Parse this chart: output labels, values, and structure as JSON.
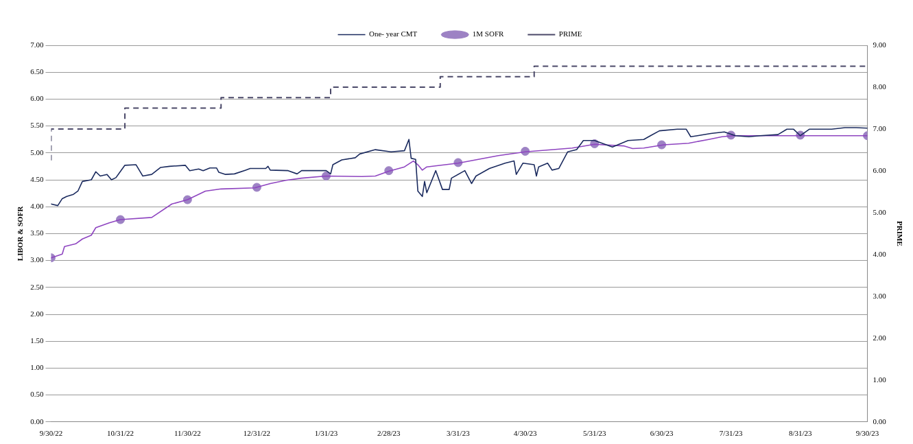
{
  "chart_data": {
    "type": "line",
    "ylabel": "LIBOR & SOFR",
    "y2label": "PRIME",
    "legend": "top",
    "grid": "y",
    "xlim": [
      "2022-09-30",
      "2023-09-30"
    ],
    "xticks": [
      {
        "value": "2022-09-30",
        "label": "9/30/22"
      },
      {
        "value": "2022-10-31",
        "label": "10/31/22"
      },
      {
        "value": "2022-11-30",
        "label": "11/30/22"
      },
      {
        "value": "2022-12-31",
        "label": "12/31/22"
      },
      {
        "value": "2023-01-31",
        "label": "1/31/23"
      },
      {
        "value": "2023-02-28",
        "label": "2/28/23"
      },
      {
        "value": "2023-03-31",
        "label": "3/31/23"
      },
      {
        "value": "2023-04-30",
        "label": "4/30/23"
      },
      {
        "value": "2023-05-31",
        "label": "5/31/23"
      },
      {
        "value": "2023-06-30",
        "label": "6/30/23"
      },
      {
        "value": "2023-07-31",
        "label": "7/31/23"
      },
      {
        "value": "2023-08-31",
        "label": "8/31/23"
      },
      {
        "value": "2023-09-30",
        "label": "9/30/23"
      }
    ],
    "ylim": [
      0,
      7
    ],
    "yticks": [
      {
        "value": 0,
        "label": "0.00"
      },
      {
        "value": 0.5,
        "label": "0.50"
      },
      {
        "value": 1,
        "label": "1.00"
      },
      {
        "value": 1.5,
        "label": "1.50"
      },
      {
        "value": 2,
        "label": "2.00"
      },
      {
        "value": 2.5,
        "label": "2.50"
      },
      {
        "value": 3,
        "label": "3.00"
      },
      {
        "value": 3.5,
        "label": "3.50"
      },
      {
        "value": 4,
        "label": "4.00"
      },
      {
        "value": 4.5,
        "label": "4.50"
      },
      {
        "value": 5,
        "label": "5.00"
      },
      {
        "value": 5.5,
        "label": "5.50"
      },
      {
        "value": 6,
        "label": "6.00"
      },
      {
        "value": 6.5,
        "label": "6.50"
      },
      {
        "value": 7,
        "label": "7.00"
      }
    ],
    "y2lim": [
      0,
      9
    ],
    "y2ticks": [
      {
        "value": 0,
        "label": "0.00"
      },
      {
        "value": 1,
        "label": "1.00"
      },
      {
        "value": 2,
        "label": "2.00"
      },
      {
        "value": 3,
        "label": "3.00"
      },
      {
        "value": 4,
        "label": "4.00"
      },
      {
        "value": 5,
        "label": "5.00"
      },
      {
        "value": 6,
        "label": "6.00"
      },
      {
        "value": 7,
        "label": "7.00"
      },
      {
        "value": 8,
        "label": "8.00"
      },
      {
        "value": 9,
        "label": "9.00"
      }
    ],
    "series": [
      {
        "name": "One- year CMT",
        "type": "line",
        "color": "#1a2a5e",
        "x": [
          "2022-09-30",
          "2022-10-03",
          "2022-10-05",
          "2022-10-07",
          "2022-10-10",
          "2022-10-12",
          "2022-10-14",
          "2022-10-18",
          "2022-10-20",
          "2022-10-22",
          "2022-10-25",
          "2022-10-27",
          "2022-10-29",
          "2022-11-02",
          "2022-11-07",
          "2022-11-10",
          "2022-11-14",
          "2022-11-18",
          "2022-11-22",
          "2022-11-29",
          "2022-12-01",
          "2022-12-05",
          "2022-12-07",
          "2022-12-10",
          "2022-12-13",
          "2022-12-14",
          "2022-12-17",
          "2022-12-21",
          "2022-12-26",
          "2022-12-28",
          "2023-01-04",
          "2023-01-05",
          "2023-01-06",
          "2023-01-14",
          "2023-01-18",
          "2023-01-20",
          "2023-01-31",
          "2023-02-02",
          "2023-02-03",
          "2023-02-07",
          "2023-02-13",
          "2023-02-15",
          "2023-02-22",
          "2023-03-01",
          "2023-03-07",
          "2023-03-09",
          "2023-03-10",
          "2023-03-12",
          "2023-03-13",
          "2023-03-15",
          "2023-03-16",
          "2023-03-17",
          "2023-03-21",
          "2023-03-24",
          "2023-03-27",
          "2023-03-28",
          "2023-04-03",
          "2023-04-06",
          "2023-04-08",
          "2023-04-14",
          "2023-04-21",
          "2023-04-25",
          "2023-04-26",
          "2023-04-29",
          "2023-05-04",
          "2023-05-05",
          "2023-05-06",
          "2023-05-10",
          "2023-05-12",
          "2023-05-15",
          "2023-05-19",
          "2023-05-23",
          "2023-05-26",
          "2023-05-31",
          "2023-06-08",
          "2023-06-15",
          "2023-06-22",
          "2023-06-25",
          "2023-06-29",
          "2023-07-07",
          "2023-07-11",
          "2023-07-13",
          "2023-07-16",
          "2023-07-22",
          "2023-07-28",
          "2023-08-02",
          "2023-08-08",
          "2023-08-13",
          "2023-08-21",
          "2023-08-25",
          "2023-08-28",
          "2023-08-31",
          "2023-09-04",
          "2023-09-14",
          "2023-09-20",
          "2023-09-25",
          "2023-09-30"
        ],
        "values": [
          4.05,
          4.02,
          4.15,
          4.19,
          4.23,
          4.29,
          4.47,
          4.5,
          4.65,
          4.57,
          4.6,
          4.5,
          4.54,
          4.77,
          4.78,
          4.57,
          4.6,
          4.73,
          4.75,
          4.77,
          4.67,
          4.7,
          4.67,
          4.72,
          4.72,
          4.64,
          4.6,
          4.61,
          4.68,
          4.71,
          4.71,
          4.75,
          4.68,
          4.67,
          4.61,
          4.67,
          4.67,
          4.61,
          4.78,
          4.87,
          4.91,
          4.98,
          5.06,
          5.02,
          5.04,
          5.25,
          4.9,
          4.88,
          4.29,
          4.19,
          4.47,
          4.26,
          4.67,
          4.32,
          4.32,
          4.53,
          4.67,
          4.43,
          4.57,
          4.71,
          4.81,
          4.85,
          4.6,
          4.81,
          4.78,
          4.57,
          4.74,
          4.81,
          4.68,
          4.71,
          5.02,
          5.06,
          5.23,
          5.23,
          5.11,
          5.23,
          5.25,
          5.32,
          5.41,
          5.44,
          5.44,
          5.3,
          5.32,
          5.36,
          5.39,
          5.32,
          5.3,
          5.32,
          5.34,
          5.44,
          5.44,
          5.32,
          5.44,
          5.44,
          5.47,
          5.47,
          5.46
        ]
      },
      {
        "type": "line",
        "color": "#8e44c0",
        "x": [
          "2022-09-30",
          "2022-10-05",
          "2022-10-06",
          "2022-10-11",
          "2022-10-14",
          "2022-10-18",
          "2022-10-20",
          "2022-10-26",
          "2022-10-31",
          "2022-11-14",
          "2022-11-23",
          "2022-11-30",
          "2022-12-08",
          "2022-12-15",
          "2022-12-30",
          "2023-01-06",
          "2023-01-13",
          "2023-01-20",
          "2023-01-31",
          "2023-02-16",
          "2023-02-22",
          "2023-02-28",
          "2023-03-07",
          "2023-03-11",
          "2023-03-13",
          "2023-03-15",
          "2023-03-17",
          "2023-03-31",
          "2023-04-18",
          "2023-04-30",
          "2023-05-21",
          "2023-05-31",
          "2023-06-13",
          "2023-06-17",
          "2023-06-22",
          "2023-07-01",
          "2023-07-12",
          "2023-07-21",
          "2023-07-27",
          "2023-08-01",
          "2023-09-30"
        ],
        "values": [
          3.05,
          3.12,
          3.26,
          3.31,
          3.4,
          3.47,
          3.61,
          3.7,
          3.76,
          3.8,
          4.05,
          4.13,
          4.29,
          4.33,
          4.35,
          4.43,
          4.49,
          4.53,
          4.57,
          4.56,
          4.57,
          4.66,
          4.74,
          4.85,
          4.78,
          4.68,
          4.74,
          4.81,
          4.95,
          5.02,
          5.09,
          5.16,
          5.13,
          5.08,
          5.09,
          5.15,
          5.18,
          5.25,
          5.3,
          5.32,
          5.32
        ]
      },
      {
        "name": "1M SOFR",
        "type": "scatter",
        "marker": "circle",
        "color": "#9d82c4",
        "x": [
          "2022-09-30",
          "2022-10-31",
          "2022-11-30",
          "2022-12-31",
          "2023-01-31",
          "2023-02-28",
          "2023-03-31",
          "2023-04-30",
          "2023-05-31",
          "2023-06-30",
          "2023-07-31",
          "2023-08-31",
          "2023-09-30"
        ],
        "values": [
          3.05,
          3.76,
          4.13,
          4.36,
          4.57,
          4.67,
          4.82,
          5.03,
          5.17,
          5.15,
          5.33,
          5.33,
          5.32
        ]
      },
      {
        "name": "PRIME",
        "type": "step",
        "axis": "y2",
        "line_style": "dashed",
        "color": "#4a4868",
        "x": [
          "2022-09-30",
          "2022-11-02",
          "2022-12-15",
          "2023-02-02",
          "2023-03-23",
          "2023-05-04",
          "2023-07-27",
          "2023-09-30"
        ],
        "values": [
          6.25,
          7,
          7.5,
          7.75,
          8,
          8.25,
          8.5,
          8.5
        ]
      }
    ]
  }
}
